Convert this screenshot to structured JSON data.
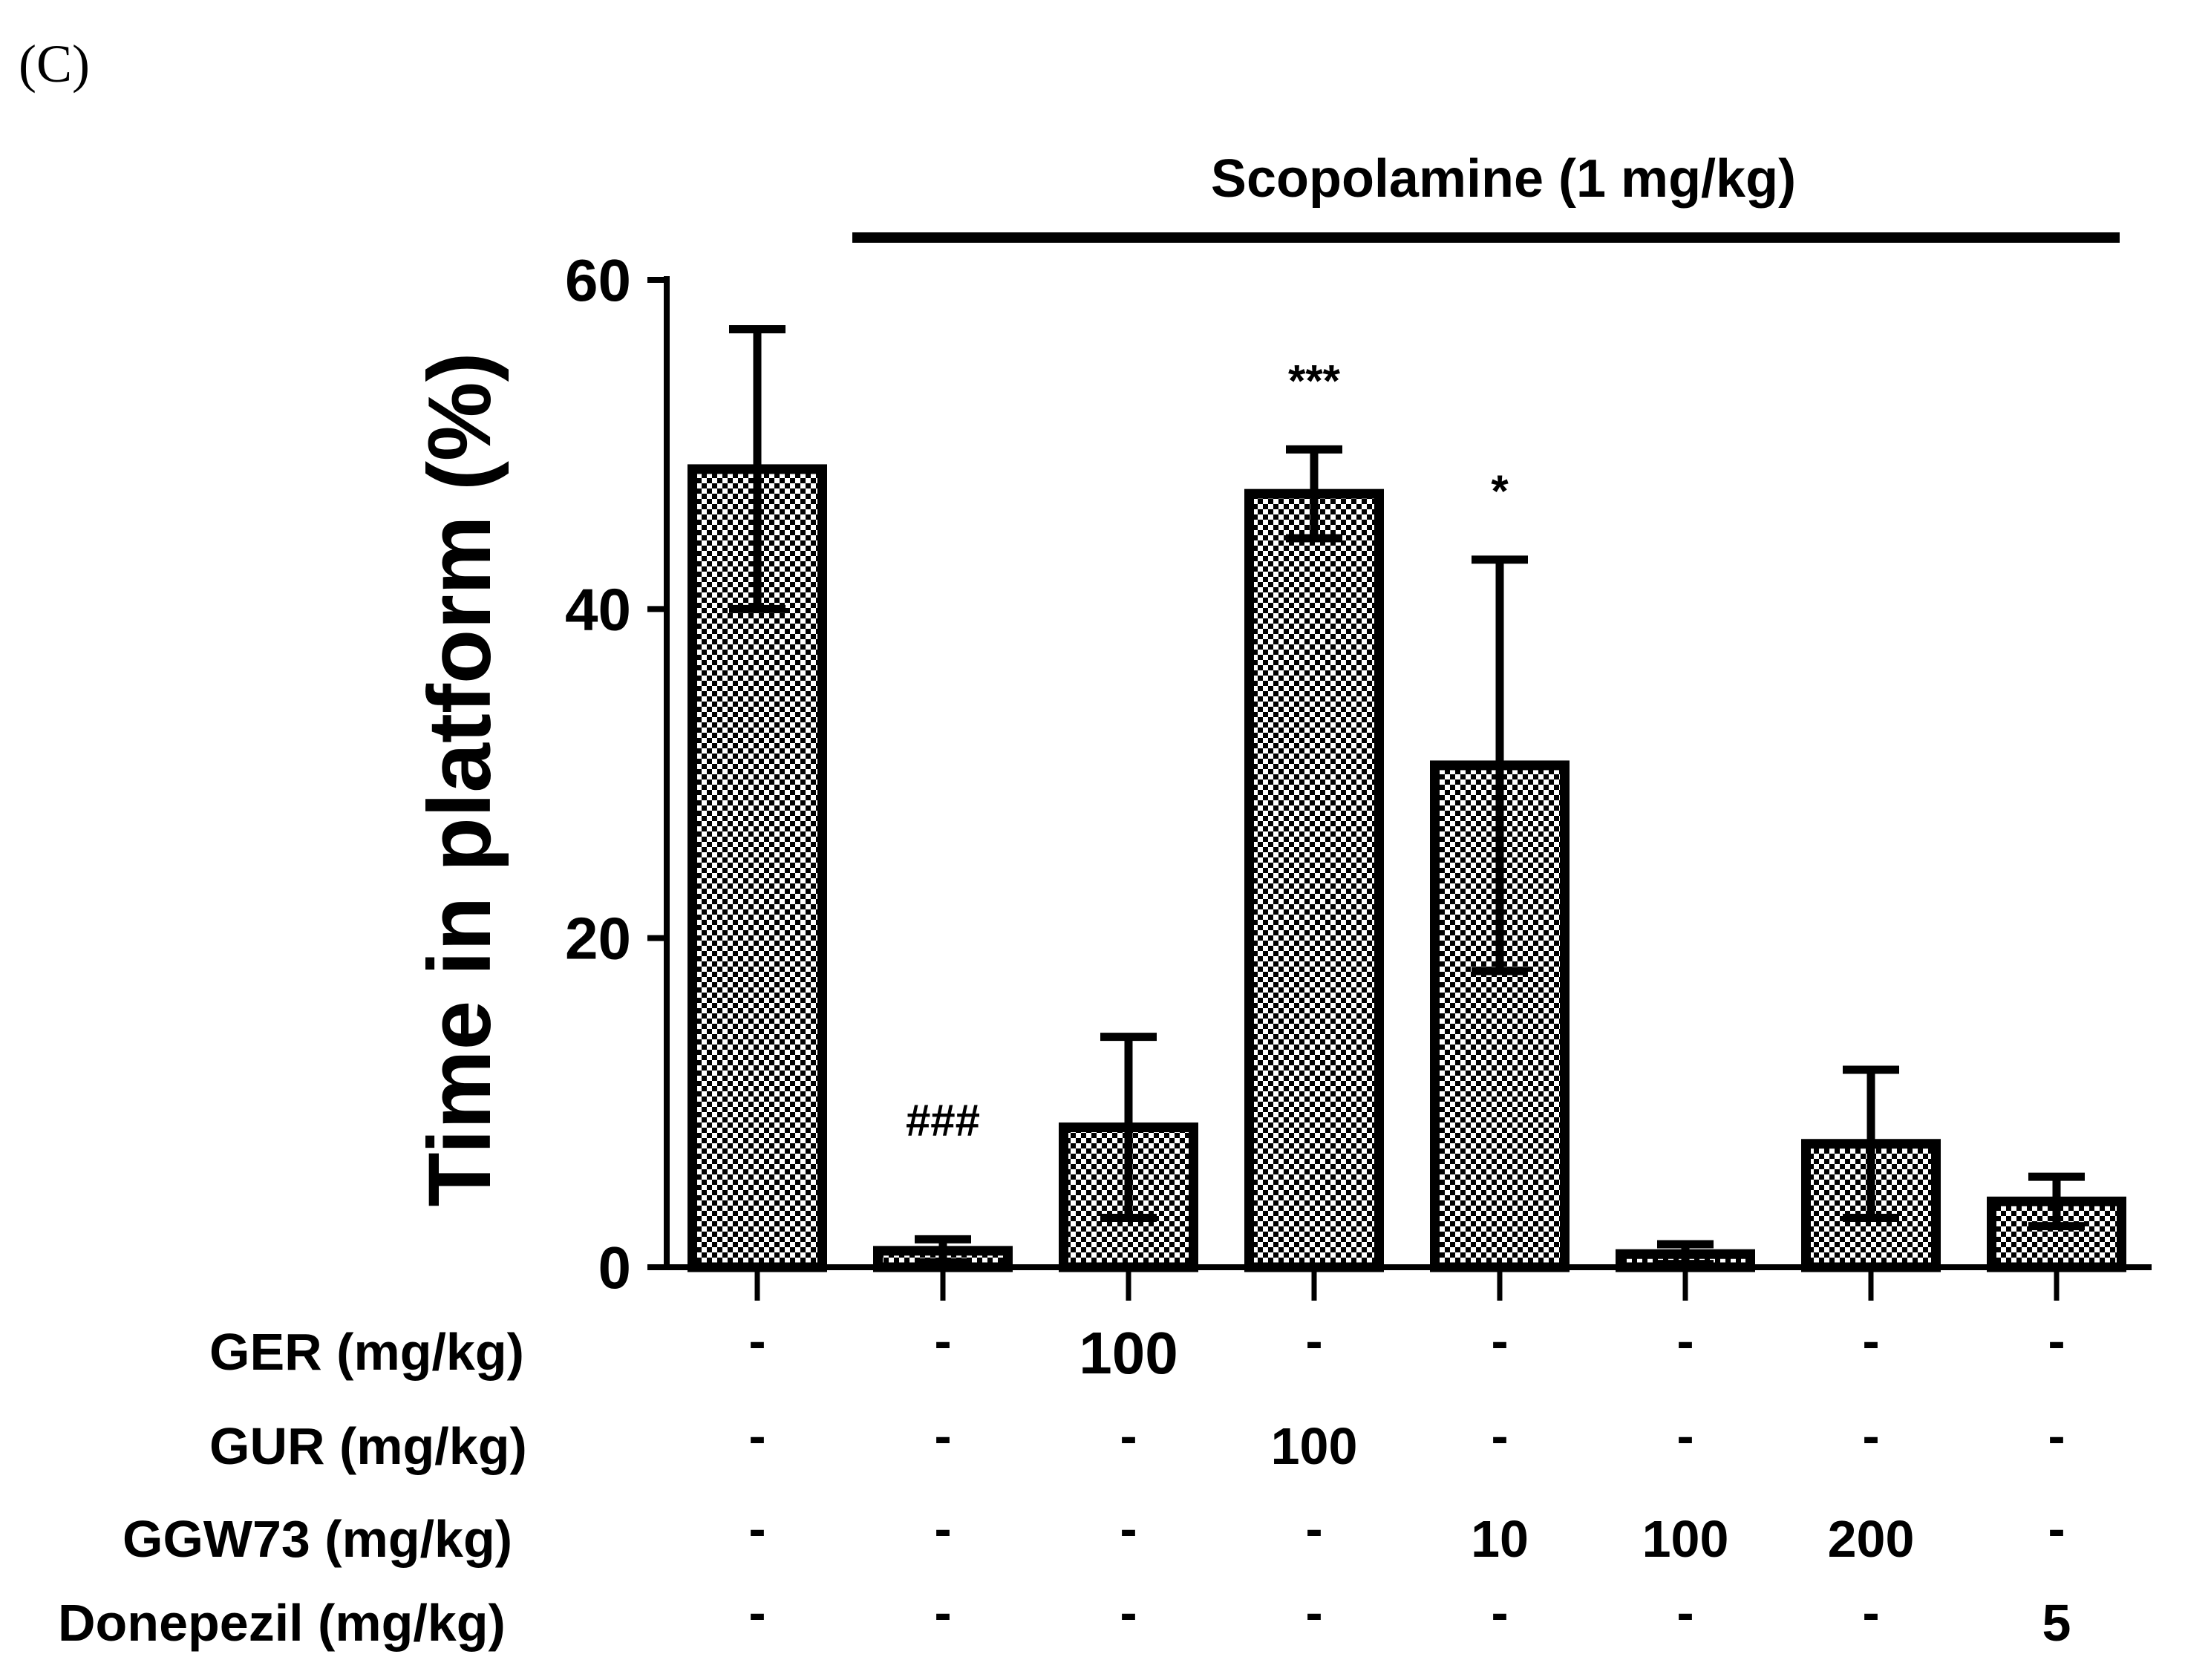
{
  "panel_label": "(C)",
  "chart_data": {
    "type": "bar",
    "title": "Scopolamine (1 mg/kg)",
    "ylabel": "Time in platform (%)",
    "xlabel": "",
    "ylim": [
      0,
      60
    ],
    "yticks": [
      0,
      20,
      40,
      60
    ],
    "fill_pattern": "checkerboard",
    "grid": false,
    "legend": "none",
    "values": [
      48.5,
      1.0,
      8.5,
      47.0,
      30.5,
      0.8,
      7.5,
      4.0
    ],
    "errors": [
      8.5,
      0.7,
      5.5,
      2.7,
      12.5,
      0.6,
      4.5,
      1.5
    ],
    "annotations": [
      "",
      "###",
      "",
      "***",
      "*",
      "",
      "",
      ""
    ],
    "bracket_label": "Scopolamine (1 mg/kg)",
    "bracket_span": [
      1,
      7
    ],
    "treatment_table": [
      {
        "label": "GER (mg/kg)",
        "cells": [
          "-",
          "-",
          "100",
          "-",
          "-",
          "-",
          "-",
          "-"
        ]
      },
      {
        "label": "GUR (mg/kg)",
        "cells": [
          "-",
          "-",
          "-",
          "100",
          "-",
          "-",
          "-",
          "-"
        ]
      },
      {
        "label": "GGW73 (mg/kg)",
        "cells": [
          "-",
          "-",
          "-",
          "-",
          "10",
          "100",
          "200",
          "-"
        ]
      },
      {
        "label": "Donepezil (mg/kg)",
        "cells": [
          "-",
          "-",
          "-",
          "-",
          "-",
          "-",
          "-",
          "5"
        ]
      }
    ]
  }
}
